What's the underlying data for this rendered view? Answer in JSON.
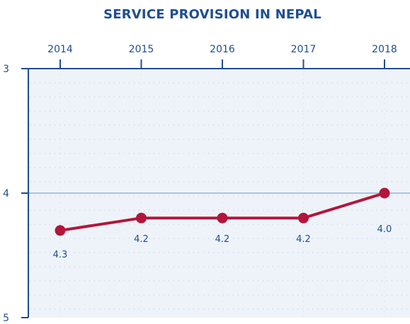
{
  "chart_data": {
    "type": "line",
    "title": "SERVICE PROVISION IN NEPAL",
    "x": [
      "2014",
      "2015",
      "2016",
      "2017",
      "2018"
    ],
    "series": [
      {
        "values": [
          4.3,
          4.2,
          4.2,
          4.2,
          4.0
        ],
        "labels": [
          "4.3",
          "4.2",
          "4.2",
          "4.2",
          "4.0"
        ]
      }
    ],
    "y_axis": {
      "min": 3,
      "max": 5,
      "inverted": true,
      "ticks": [
        "3",
        "4",
        "5"
      ]
    },
    "x_axis_position": "top",
    "grid": true,
    "colors": {
      "series": "#b3163a",
      "axis": "#1f4e91",
      "plot_background": "#eef3fa",
      "grid": "#b9c9dd",
      "reference_line": "#a9c3e0"
    }
  }
}
